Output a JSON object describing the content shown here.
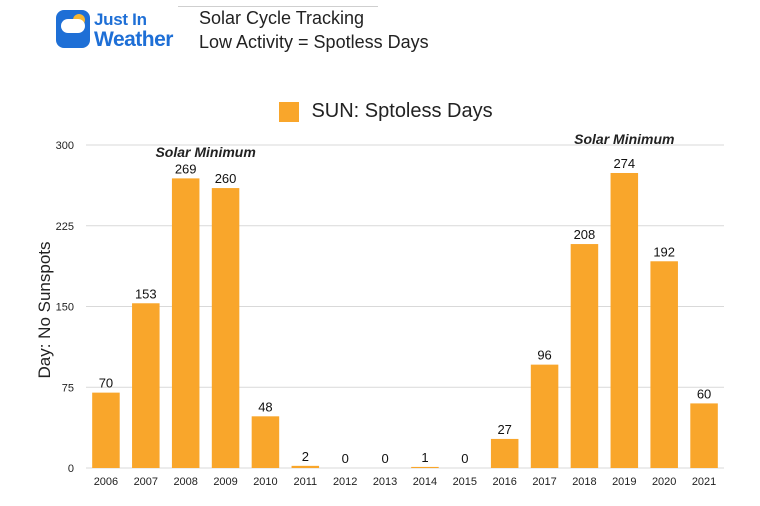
{
  "header": {
    "brand": [
      "Just In",
      "Weather"
    ],
    "title": "Solar Cycle Tracking",
    "subtitle": "Low Activity = Spotless Days"
  },
  "colors": {
    "bar": "#f9a62b",
    "brand": "#1e6fd6",
    "grid": "#d9d9d9"
  },
  "icons": {
    "logo": "cloud-sun-icon"
  },
  "chart_data": {
    "type": "bar",
    "title": "",
    "xlabel": "",
    "ylabel": "Day: No Sunspots",
    "ylim": [
      0,
      300
    ],
    "yticks": [
      0,
      75,
      150,
      225,
      300
    ],
    "grid": true,
    "legend_position": "top-center",
    "categories": [
      "2006",
      "2007",
      "2008",
      "2009",
      "2010",
      "2011",
      "2012",
      "2013",
      "2014",
      "2015",
      "2016",
      "2017",
      "2018",
      "2019",
      "2020",
      "2021"
    ],
    "series": [
      {
        "name": "SUN: Sptoless Days",
        "values": [
          70,
          153,
          269,
          260,
          48,
          2,
          0,
          0,
          1,
          0,
          27,
          96,
          208,
          274,
          192,
          60
        ]
      }
    ],
    "data_labels": true,
    "annotations": [
      "Solar Minimum",
      "Solar Minimum"
    ]
  }
}
